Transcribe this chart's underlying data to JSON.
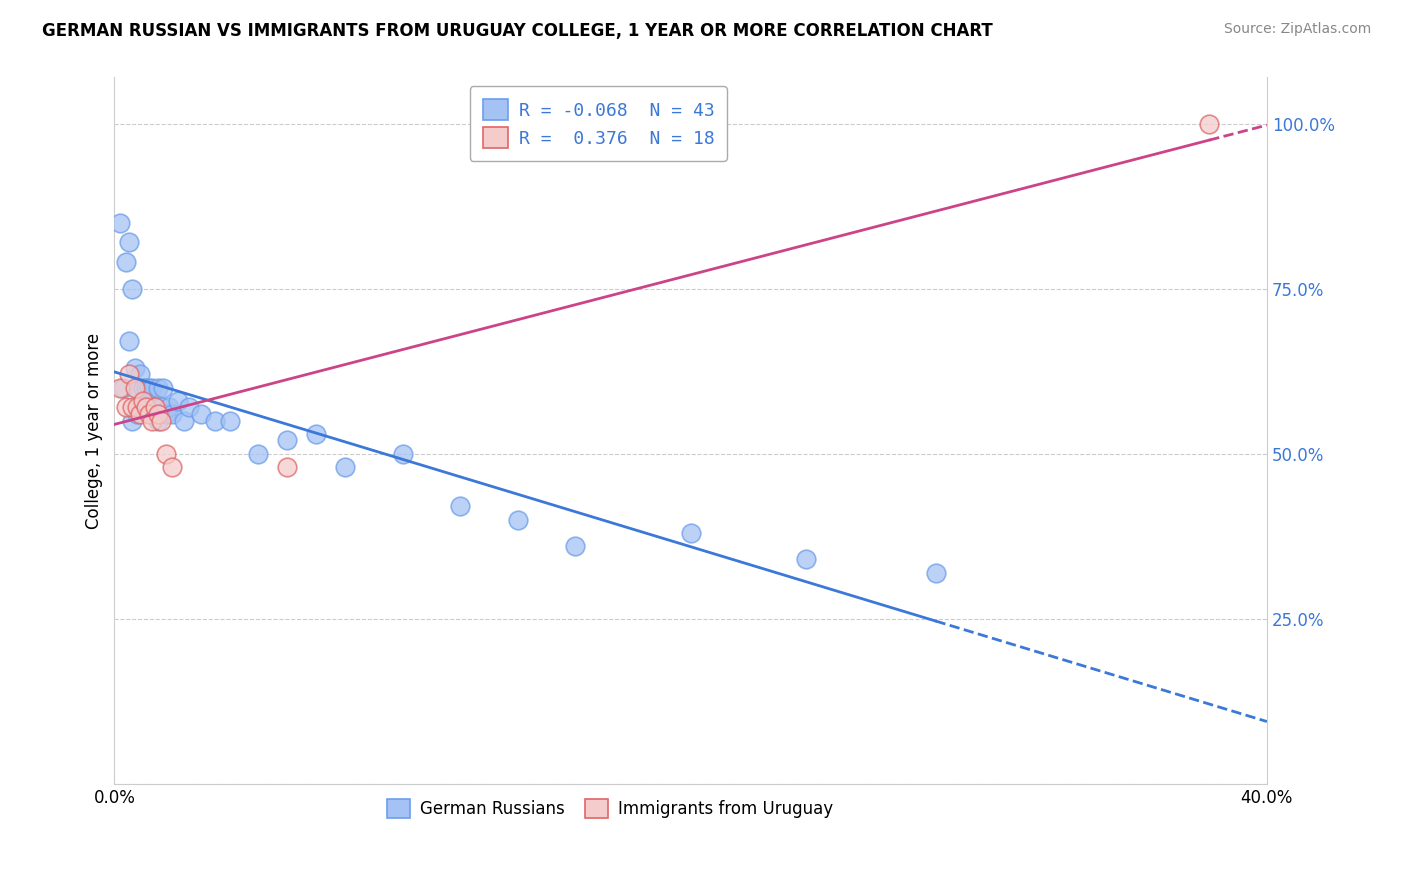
{
  "title": "GERMAN RUSSIAN VS IMMIGRANTS FROM URUGUAY COLLEGE, 1 YEAR OR MORE CORRELATION CHART",
  "source": "Source: ZipAtlas.com",
  "ylabel": "College, 1 year or more",
  "xlim": [
    0.0,
    0.4
  ],
  "ylim": [
    0.0,
    1.07
  ],
  "yticks": [
    0.0,
    0.25,
    0.5,
    0.75,
    1.0
  ],
  "ytick_labels": [
    "",
    "25.0%",
    "50.0%",
    "75.0%",
    "100.0%"
  ],
  "blue_face": "#a4c2f4",
  "blue_edge": "#6d9eeb",
  "pink_face": "#f4cccc",
  "pink_edge": "#e06666",
  "blue_line": "#3c78d8",
  "pink_line": "#cc4488",
  "background": "#ffffff",
  "grid_color": "#cccccc",
  "tick_color": "#3c78d8",
  "german_russian_x": [
    0.002,
    0.003,
    0.004,
    0.005,
    0.005,
    0.006,
    0.006,
    0.007,
    0.008,
    0.008,
    0.009,
    0.009,
    0.01,
    0.01,
    0.011,
    0.011,
    0.012,
    0.013,
    0.014,
    0.015,
    0.015,
    0.016,
    0.017,
    0.018,
    0.019,
    0.02,
    0.022,
    0.024,
    0.026,
    0.03,
    0.035,
    0.04,
    0.05,
    0.06,
    0.07,
    0.08,
    0.1,
    0.12,
    0.14,
    0.16,
    0.2,
    0.24,
    0.285
  ],
  "german_russian_y": [
    0.85,
    0.6,
    0.79,
    0.67,
    0.82,
    0.75,
    0.55,
    0.63,
    0.56,
    0.6,
    0.57,
    0.62,
    0.57,
    0.6,
    0.6,
    0.57,
    0.6,
    0.6,
    0.57,
    0.55,
    0.6,
    0.57,
    0.6,
    0.56,
    0.57,
    0.56,
    0.58,
    0.55,
    0.57,
    0.56,
    0.55,
    0.55,
    0.5,
    0.52,
    0.53,
    0.48,
    0.5,
    0.42,
    0.4,
    0.36,
    0.38,
    0.34,
    0.32
  ],
  "uruguay_x": [
    0.002,
    0.004,
    0.005,
    0.006,
    0.007,
    0.008,
    0.009,
    0.01,
    0.011,
    0.012,
    0.013,
    0.014,
    0.015,
    0.016,
    0.018,
    0.02,
    0.06,
    0.38
  ],
  "uruguay_y": [
    0.6,
    0.57,
    0.62,
    0.57,
    0.6,
    0.57,
    0.56,
    0.58,
    0.57,
    0.56,
    0.55,
    0.57,
    0.56,
    0.55,
    0.5,
    0.48,
    0.48,
    1.0
  ],
  "legend1_label": "R = -0.068  N = 43",
  "legend2_label": "R =  0.376  N = 18",
  "bottom_label1": "German Russians",
  "bottom_label2": "Immigrants from Uruguay"
}
